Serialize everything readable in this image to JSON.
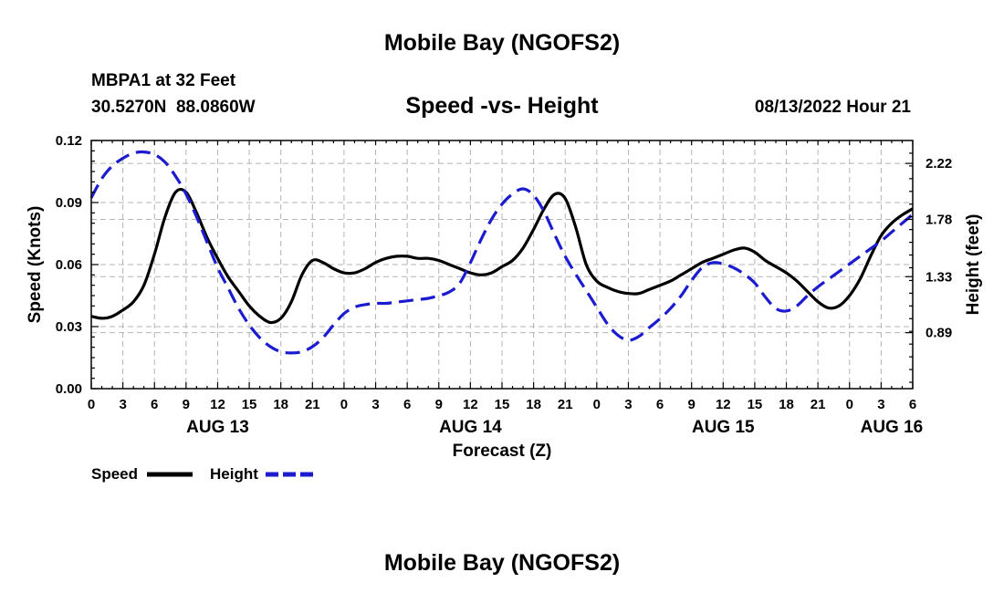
{
  "page": {
    "title_top": "Mobile Bay (NGOFS2)",
    "title_bottom": "Mobile Bay (NGOFS2)",
    "station_line1": "MBPA1 at 32 Feet",
    "station_line2": "30.5270N  88.0860W",
    "datetime": "08/13/2022 Hour 21"
  },
  "chart_data": {
    "type": "line",
    "title": "Speed -vs- Height",
    "xlabel": "Forecast (Z)",
    "ylabel": "Speed (Knots)",
    "y2label": "Height (feet)",
    "xlim": [
      0,
      78
    ],
    "ylim": [
      0,
      0.12
    ],
    "y2lim": [
      0.45,
      2.4
    ],
    "grid": true,
    "legend_position": "bottom-left",
    "x_tick_values": [
      0,
      3,
      6,
      9,
      12,
      15,
      18,
      21,
      24,
      27,
      30,
      33,
      36,
      39,
      42,
      45,
      48,
      51,
      54,
      57,
      60,
      63,
      66,
      69,
      72,
      75,
      78
    ],
    "x_tick_labels": [
      "0",
      "3",
      "6",
      "9",
      "12",
      "15",
      "18",
      "21",
      "0",
      "3",
      "6",
      "9",
      "12",
      "15",
      "18",
      "21",
      "0",
      "3",
      "6",
      "9",
      "12",
      "15",
      "18",
      "21",
      "0",
      "3",
      "6"
    ],
    "date_labels": [
      {
        "x": 12,
        "label": "AUG 13"
      },
      {
        "x": 36,
        "label": "AUG 14"
      },
      {
        "x": 60,
        "label": "AUG 15"
      },
      {
        "x": 76,
        "label": "AUG 16"
      }
    ],
    "y_tick_values": [
      0,
      0.03,
      0.06,
      0.09,
      0.12
    ],
    "y_tick_labels": [
      "0.00",
      "0.03",
      "0.06",
      "0.09",
      "0.12"
    ],
    "y2_tick_values": [
      0.89,
      1.33,
      1.78,
      2.22
    ],
    "y2_tick_labels": [
      "0.89",
      "1.33",
      "1.78",
      "2.22"
    ],
    "series": [
      {
        "name": "Speed",
        "axis": "left",
        "color": "#000000",
        "dashed": false,
        "x": [
          0,
          1,
          2,
          3,
          4,
          5,
          6,
          7,
          8,
          9,
          10,
          11,
          12,
          13,
          14,
          15,
          16,
          17,
          18,
          19,
          20,
          21,
          22,
          23,
          24,
          25,
          26,
          27,
          28,
          29,
          30,
          31,
          32,
          33,
          34,
          35,
          36,
          37,
          38,
          39,
          40,
          41,
          42,
          43,
          44,
          45,
          46,
          47,
          48,
          49,
          50,
          51,
          52,
          53,
          54,
          55,
          56,
          57,
          58,
          59,
          60,
          61,
          62,
          63,
          64,
          65,
          66,
          67,
          68,
          69,
          70,
          71,
          72,
          73,
          74,
          75,
          76,
          77,
          78
        ],
        "values": [
          0.035,
          0.034,
          0.035,
          0.038,
          0.042,
          0.05,
          0.065,
          0.083,
          0.095,
          0.095,
          0.085,
          0.073,
          0.063,
          0.054,
          0.047,
          0.04,
          0.035,
          0.032,
          0.034,
          0.042,
          0.055,
          0.062,
          0.061,
          0.058,
          0.056,
          0.056,
          0.058,
          0.061,
          0.063,
          0.064,
          0.064,
          0.063,
          0.063,
          0.062,
          0.06,
          0.058,
          0.056,
          0.055,
          0.056,
          0.059,
          0.062,
          0.068,
          0.077,
          0.087,
          0.094,
          0.092,
          0.078,
          0.06,
          0.052,
          0.049,
          0.047,
          0.046,
          0.046,
          0.048,
          0.05,
          0.052,
          0.055,
          0.058,
          0.061,
          0.063,
          0.065,
          0.067,
          0.068,
          0.066,
          0.062,
          0.059,
          0.056,
          0.052,
          0.047,
          0.042,
          0.039,
          0.04,
          0.045,
          0.053,
          0.064,
          0.074,
          0.08,
          0.084,
          0.087
        ]
      },
      {
        "name": "Height",
        "axis": "right",
        "color": "#1b1bd0",
        "dashed": true,
        "x": [
          0,
          1,
          2,
          3,
          4,
          5,
          6,
          7,
          8,
          9,
          10,
          11,
          12,
          13,
          14,
          15,
          16,
          17,
          18,
          19,
          20,
          21,
          22,
          23,
          24,
          25,
          26,
          27,
          28,
          29,
          30,
          31,
          32,
          33,
          34,
          35,
          36,
          37,
          38,
          39,
          40,
          41,
          42,
          43,
          44,
          45,
          46,
          47,
          48,
          49,
          50,
          51,
          52,
          53,
          54,
          55,
          56,
          57,
          58,
          59,
          60,
          61,
          62,
          63,
          64,
          65,
          66,
          67,
          68,
          69,
          70,
          71,
          72,
          73,
          74,
          75,
          76,
          77,
          78
        ],
        "values": [
          1.95,
          2.1,
          2.2,
          2.26,
          2.3,
          2.31,
          2.29,
          2.23,
          2.12,
          1.98,
          1.8,
          1.6,
          1.4,
          1.24,
          1.08,
          0.95,
          0.85,
          0.78,
          0.74,
          0.73,
          0.74,
          0.78,
          0.85,
          0.95,
          1.04,
          1.09,
          1.11,
          1.12,
          1.12,
          1.13,
          1.14,
          1.15,
          1.16,
          1.18,
          1.21,
          1.28,
          1.44,
          1.62,
          1.78,
          1.9,
          1.98,
          2.02,
          1.97,
          1.84,
          1.66,
          1.49,
          1.35,
          1.22,
          1.09,
          0.96,
          0.87,
          0.83,
          0.86,
          0.93,
          1.0,
          1.08,
          1.18,
          1.3,
          1.4,
          1.44,
          1.43,
          1.4,
          1.35,
          1.28,
          1.17,
          1.08,
          1.06,
          1.1,
          1.18,
          1.25,
          1.31,
          1.37,
          1.43,
          1.49,
          1.55,
          1.61,
          1.68,
          1.75,
          1.82
        ]
      }
    ]
  }
}
